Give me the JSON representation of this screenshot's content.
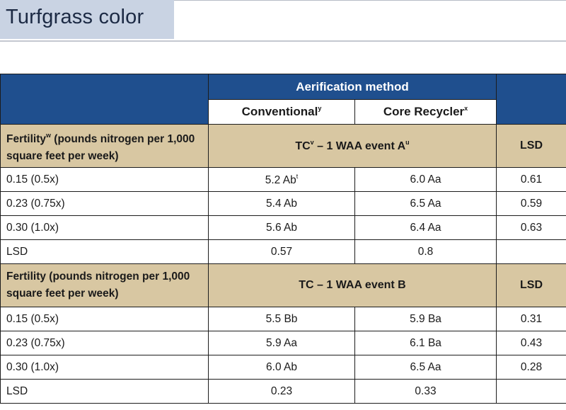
{
  "title": "Turfgrass color",
  "table": {
    "header": "Aerification method",
    "col_conventional": "Conventional",
    "col_conventional_sup": "y",
    "col_core": "Core Recycler",
    "col_core_sup": "x",
    "sections": [
      {
        "label_pre": "Fertility",
        "label_sup": "w",
        "label_post": " (pounds nitrogen per 1,000 square feet per week)",
        "event_pre": "TC",
        "event_sup1": "v",
        "event_mid": " – 1 WAA event A",
        "event_sup2": "u",
        "lsd_header": "LSD",
        "rows": [
          {
            "label": "0.15 (0.5x)",
            "conv": "5.2 Ab",
            "conv_sup": "t",
            "core": "6.0 Aa",
            "lsd": "0.61"
          },
          {
            "label": "0.23 (0.75x)",
            "conv": "5.4 Ab",
            "conv_sup": "",
            "core": "6.5 Aa",
            "lsd": "0.59"
          },
          {
            "label": "0.30 (1.0x)",
            "conv": "5.6 Ab",
            "conv_sup": "",
            "core": "6.4 Aa",
            "lsd": "0.63"
          },
          {
            "label": "LSD",
            "conv": "0.57",
            "conv_sup": "",
            "core": "0.8",
            "lsd": ""
          }
        ]
      },
      {
        "label": "Fertility (pounds nitrogen per 1,000 square feet per week)",
        "event": "TC – 1 WAA event B",
        "lsd_header": "LSD",
        "rows": [
          {
            "label": "0.15 (0.5x)",
            "conv": "5.5 Bb",
            "core": "5.9 Ba",
            "lsd": "0.31"
          },
          {
            "label": "0.23 (0.75x)",
            "conv": "5.9 Aa",
            "core": "6.1 Ba",
            "lsd": "0.43"
          },
          {
            "label": "0.30 (1.0x)",
            "conv": "6.0 Ab",
            "core": "6.5 Aa",
            "lsd": "0.28"
          },
          {
            "label": "LSD",
            "conv": "0.23",
            "core": "0.33",
            "lsd": ""
          }
        ]
      }
    ]
  }
}
